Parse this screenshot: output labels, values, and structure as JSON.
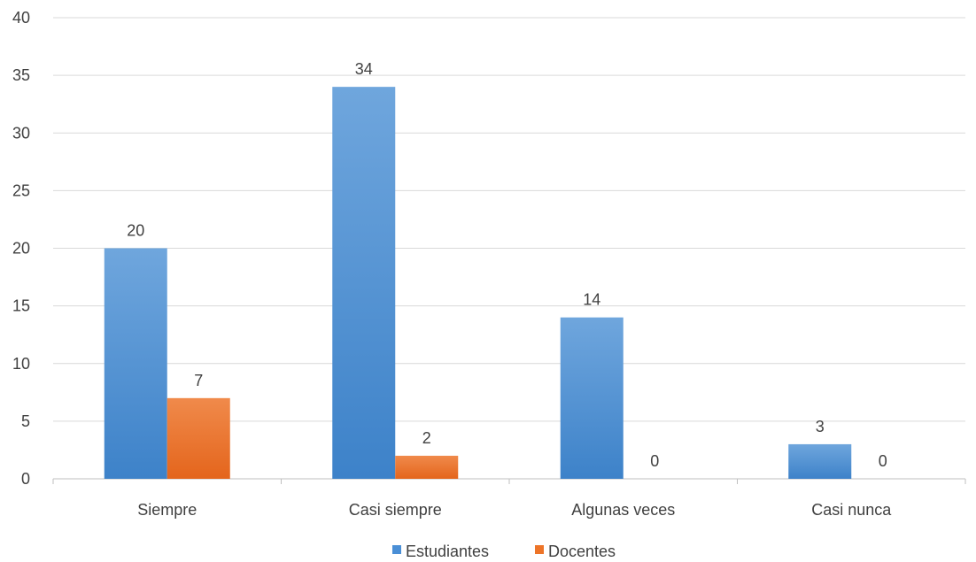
{
  "chart_data": {
    "type": "bar",
    "categories": [
      "Siempre",
      "Casi siempre",
      "Algunas veces",
      "Casi nunca"
    ],
    "series": [
      {
        "name": "Estudiantes",
        "values": [
          20,
          34,
          14,
          3
        ],
        "color": "#4a8fd6"
      },
      {
        "name": "Docentes",
        "values": [
          7,
          2,
          0,
          0
        ],
        "color": "#ed7428"
      }
    ],
    "ylim": [
      0,
      40
    ],
    "yticks": [
      0,
      5,
      10,
      15,
      20,
      25,
      30,
      35,
      40
    ],
    "grid": true,
    "legend_position": "bottom"
  }
}
